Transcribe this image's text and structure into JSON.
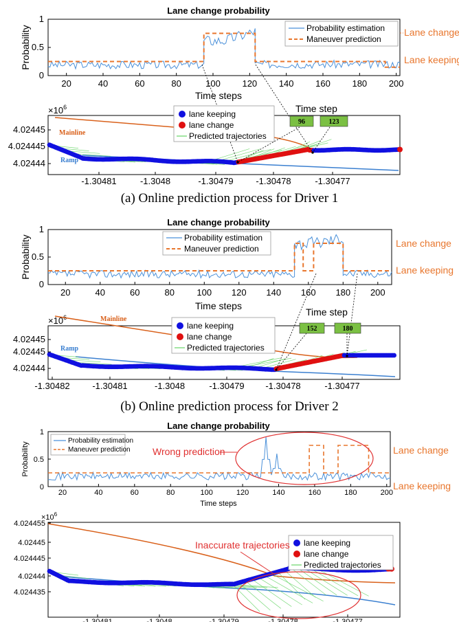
{
  "chart_data": [
    {
      "type": "line",
      "title": "Lane change probability",
      "xlabel": "Time steps",
      "ylabel": "Probability",
      "xlim": [
        10,
        202
      ],
      "ylim": [
        0,
        1
      ],
      "xticks": [
        "20",
        "40",
        "60",
        "80",
        "100",
        "120",
        "140",
        "160",
        "180",
        "200"
      ],
      "yticks": [
        "0",
        "0.5",
        "1"
      ],
      "legend": {
        "placement": "top-right",
        "entries": [
          "Probability estimation",
          "Maneuver prediction"
        ]
      },
      "side_labels": {
        "lane_change": "Lane change",
        "lane_keeping": "Lane keeping"
      },
      "series": [
        {
          "name": "Probability estimation",
          "color": "#4a90d9",
          "segments": [
            {
              "x0": 10,
              "x1": 95,
              "base": 0.19,
              "amp": 0.07
            },
            {
              "x0": 95,
              "x1": 123,
              "base": 0.62,
              "amp": 0.1,
              "rise_to": 0.9
            },
            {
              "x0": 123,
              "x1": 202,
              "base": 0.2,
              "amp": 0.07
            }
          ]
        },
        {
          "name": "Maneuver prediction",
          "color": "#e8762d",
          "steps": [
            [
              10,
              0.25
            ],
            [
              95,
              0.75
            ],
            [
              123,
              0.25
            ],
            [
              194,
              0.15
            ],
            [
              202,
              0.15
            ]
          ]
        }
      ]
    },
    {
      "type": "scatter",
      "xticks": [
        "-1.30481",
        "-1.3048",
        "-1.30479",
        "-1.30478",
        "-1.30477"
      ],
      "yticks": [
        "4.02445",
        "4.024445",
        "4.02444"
      ],
      "y_exponent": "×10",
      "y_exponent_power": "6",
      "map_labels": {
        "mainline": "Mainline",
        "ramp": "Ramp"
      },
      "legend": {
        "placement": "top-center",
        "entries": [
          "lane keeping",
          "lane change",
          "Predicted trajectories"
        ]
      },
      "time_step_label": "Time step",
      "time_steps": [
        "96",
        "123"
      ]
    },
    {
      "type": "line",
      "title": "Lane change probability",
      "xlabel": "Time steps",
      "ylabel": "Probability",
      "xlim": [
        10,
        208
      ],
      "ylim": [
        0,
        1
      ],
      "xticks": [
        "20",
        "40",
        "60",
        "80",
        "100",
        "120",
        "140",
        "160",
        "180",
        "200"
      ],
      "yticks": [
        "0",
        "0.5",
        "1"
      ],
      "legend": {
        "placement": "top-center",
        "entries": [
          "Probability estimation",
          "Maneuver prediction"
        ]
      },
      "side_labels": {
        "lane_change": "Lane change",
        "lane_keeping": "Lane keeping"
      },
      "series": [
        {
          "name": "Probability estimation",
          "color": "#4a90d9",
          "segments": [
            {
              "x0": 10,
              "x1": 152,
              "base": 0.19,
              "amp": 0.07
            },
            {
              "x0": 152,
              "x1": 180,
              "base": 0.75,
              "amp": 0.12,
              "rise_to": 0.92
            },
            {
              "x0": 180,
              "x1": 208,
              "base": 0.2,
              "amp": 0.07
            }
          ]
        },
        {
          "name": "Maneuver prediction",
          "color": "#e8762d",
          "steps": [
            [
              10,
              0.25
            ],
            [
              152,
              0.75
            ],
            [
              157,
              0.25
            ],
            [
              163,
              0.75
            ],
            [
              180,
              0.25
            ],
            [
              208,
              0.25
            ]
          ]
        }
      ]
    },
    {
      "type": "scatter",
      "xticks": [
        "-1.30482",
        "-1.30481",
        "-1.3048",
        "-1.30479",
        "-1.30478",
        "-1.30477"
      ],
      "yticks": [
        "4.02445",
        "4.02445",
        "4.02444"
      ],
      "y_exponent": "×10",
      "y_exponent_power": "6",
      "map_labels": {
        "mainline": "Mainline",
        "ramp": "Ramp"
      },
      "legend": {
        "placement": "top-center",
        "entries": [
          "lane keeping",
          "lane change",
          "Predicted trajectories"
        ]
      },
      "time_step_label": "Time step",
      "time_steps": [
        "152",
        "180"
      ]
    },
    {
      "type": "line",
      "title": "Lane change probability",
      "xlabel": "Time steps",
      "ylabel": "Probability",
      "xlim": [
        12,
        202
      ],
      "ylim": [
        0,
        1
      ],
      "xticks": [
        "20",
        "40",
        "60",
        "80",
        "100",
        "120",
        "140",
        "160",
        "180",
        "200"
      ],
      "yticks": [
        "0",
        "0.5",
        "1"
      ],
      "legend": {
        "placement": "top-left",
        "entries": [
          "Probability estimation",
          "Maneuver prediction"
        ]
      },
      "side_labels": {
        "lane_change": "Lane change",
        "lane_keeping": "Lane keeping"
      },
      "annotation": "Wrong prediction",
      "series": [
        {
          "name": "Probability estimation",
          "color": "#4a90d9",
          "segments": [
            {
              "x0": 12,
              "x1": 202,
              "base": 0.19,
              "amp": 0.07
            }
          ],
          "spikes": [
            [
              133,
              0.9
            ],
            [
              139,
              0.6
            ]
          ]
        },
        {
          "name": "Maneuver prediction",
          "color": "#e8762d",
          "steps": [
            [
              12,
              0.25
            ],
            [
              157,
              0.75
            ],
            [
              165,
              0.25
            ],
            [
              173,
              0.75
            ],
            [
              190,
              0.25
            ],
            [
              202,
              0.25
            ]
          ]
        }
      ]
    },
    {
      "type": "scatter",
      "xticks": [
        "-1.30481",
        "-1.3048",
        "-1.30479",
        "-1.30478",
        "-1.30477"
      ],
      "yticks": [
        "4.024455",
        "4.02445",
        "4.024445",
        "4.02444",
        "4.024435"
      ],
      "y_exponent": "×10",
      "y_exponent_power": "6",
      "legend": {
        "placement": "top-right",
        "entries": [
          "lane keeping",
          "lane change",
          "Predicted trajectories"
        ]
      },
      "annotation": "Inaccurate trajectories"
    }
  ],
  "captions": [
    "(a) Online prediction process for Driver 1",
    "(b) Online prediction process for Driver 2"
  ],
  "colors": {
    "estimation": "#4a90d9",
    "prediction": "#e8762d",
    "keeping": "#1010e0",
    "change": "#e01010",
    "traj": "#66d466",
    "mainline": "#d9601a",
    "ramp": "#3a7fd0",
    "annot": "#e03030",
    "tsbox": "#7bc043"
  }
}
